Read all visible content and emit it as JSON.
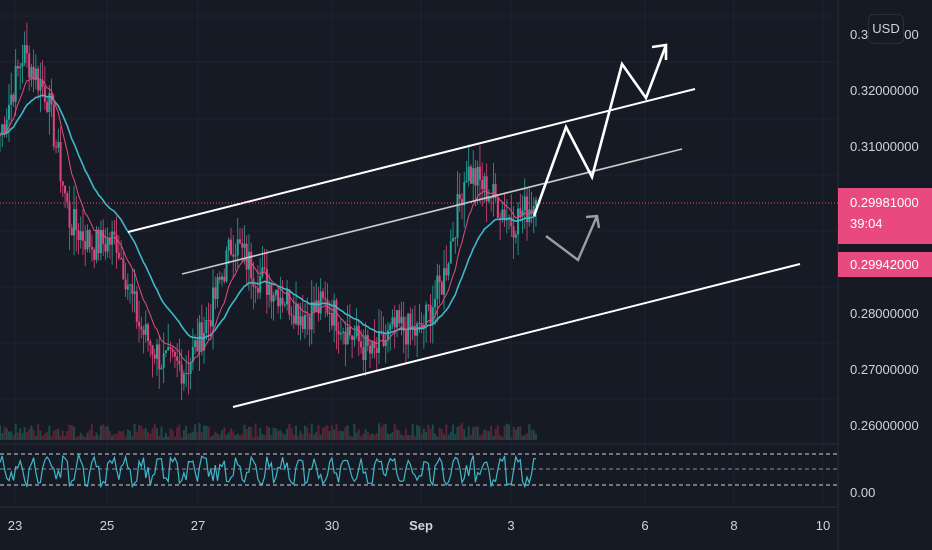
{
  "currency_button": "USD",
  "price_axis": {
    "ticks": [
      "0.33000000",
      "0.32000000",
      "0.31000000",
      "0.28000000",
      "0.27000000",
      "0.26000000"
    ],
    "current_price": "0.29981000",
    "countdown": "39:04",
    "ma_price": "0.29942000",
    "osc_tick": "0.00"
  },
  "time_axis": {
    "labels": [
      "23",
      "25",
      "27",
      "30",
      "Sep",
      "3",
      "6",
      "8",
      "10"
    ]
  },
  "colors": {
    "background": "#161a25",
    "up": "#26a69a",
    "down": "#ef5350",
    "ma_fast": "#e84a7f",
    "ma_slow": "#3fb8c9",
    "price_badge": "#e84a7f",
    "trendline": "#ffffff",
    "oscillator": "#3fb8c9"
  },
  "chart_data": {
    "type": "candlestick",
    "x_labels": [
      "23",
      "25",
      "27",
      "30",
      "Sep",
      "3",
      "6",
      "8",
      "10"
    ],
    "ylim": [
      0.258,
      0.334
    ],
    "approx_close_path": [
      {
        "x": "22",
        "y": 0.311
      },
      {
        "x": "23",
        "y": 0.325
      },
      {
        "x": "24",
        "y": 0.318
      },
      {
        "x": "24.5",
        "y": 0.296
      },
      {
        "x": "25",
        "y": 0.292
      },
      {
        "x": "25.5",
        "y": 0.293
      },
      {
        "x": "26",
        "y": 0.278
      },
      {
        "x": "26.5",
        "y": 0.272
      },
      {
        "x": "27",
        "y": 0.271
      },
      {
        "x": "27.5",
        "y": 0.28
      },
      {
        "x": "28",
        "y": 0.293
      },
      {
        "x": "28.5",
        "y": 0.287
      },
      {
        "x": "29",
        "y": 0.284
      },
      {
        "x": "29.5",
        "y": 0.28
      },
      {
        "x": "30",
        "y": 0.282
      },
      {
        "x": "30.5",
        "y": 0.277
      },
      {
        "x": "31",
        "y": 0.273
      },
      {
        "x": "31.5",
        "y": 0.278
      },
      {
        "x": "Sep",
        "y": 0.277
      },
      {
        "x": "1.5",
        "y": 0.286
      },
      {
        "x": "2",
        "y": 0.305
      },
      {
        "x": "2.5",
        "y": 0.301
      },
      {
        "x": "3",
        "y": 0.296
      },
      {
        "x": "3.5",
        "y": 0.2998
      }
    ],
    "current_price": 0.29981,
    "moving_average": 0.29942,
    "grid": true,
    "annotations": [
      "ascending channel",
      "projected zigzag up",
      "projected pullback"
    ]
  }
}
